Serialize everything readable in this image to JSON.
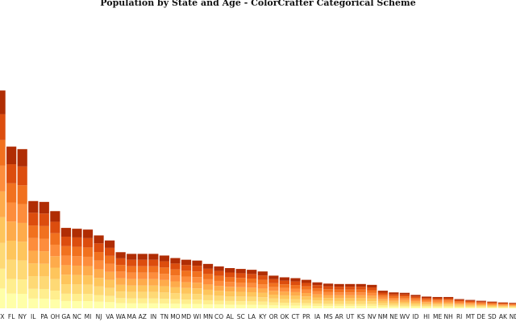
{
  "chart_data": {
    "type": "bar",
    "stacked": true,
    "title": "Population by State and Age - ColorCrafter Categorical Scheme",
    "xlabel": "",
    "ylabel": "",
    "ylim": [
      0,
      39
    ],
    "grid": false,
    "legend": "none",
    "categories": [
      "TX",
      "FL",
      "NY",
      "IL",
      "PA",
      "OH",
      "GA",
      "NC",
      "MI",
      "NJ",
      "VA",
      "WA",
      "MA",
      "AZ",
      "IN",
      "TN",
      "MO",
      "MD",
      "WI",
      "MN",
      "CO",
      "AL",
      "SC",
      "LA",
      "KY",
      "OR",
      "OK",
      "CT",
      "PR",
      "IA",
      "MS",
      "AR",
      "UT",
      "KS",
      "NV",
      "NM",
      "NE",
      "WV",
      "ID",
      "HI",
      "ME",
      "NH",
      "RI",
      "MT",
      "DE",
      "SD",
      "AK",
      "ND"
    ],
    "totals": [
      26.0,
      19.3,
      19.0,
      12.8,
      12.7,
      11.6,
      9.6,
      9.5,
      9.4,
      8.7,
      8.1,
      6.7,
      6.5,
      6.5,
      6.5,
      6.3,
      6.0,
      5.8,
      5.7,
      5.3,
      5.0,
      4.8,
      4.7,
      4.6,
      4.4,
      3.9,
      3.7,
      3.6,
      3.4,
      3.1,
      2.95,
      2.9,
      2.9,
      2.9,
      2.8,
      2.1,
      1.9,
      1.85,
      1.6,
      1.4,
      1.35,
      1.35,
      1.1,
      1.0,
      0.9,
      0.8,
      0.7,
      0.65
    ],
    "age_share": [
      0.1,
      0.1,
      0.13,
      0.13,
      0.13,
      0.13,
      0.13,
      0.13,
      0.12
    ],
    "colors": [
      "#ffffa8",
      "#ffee8e",
      "#fed975",
      "#fec55c",
      "#feab4b",
      "#fd8d3c",
      "#f1711f",
      "#dc4d0e",
      "#b02d04",
      "#7f2704"
    ]
  }
}
